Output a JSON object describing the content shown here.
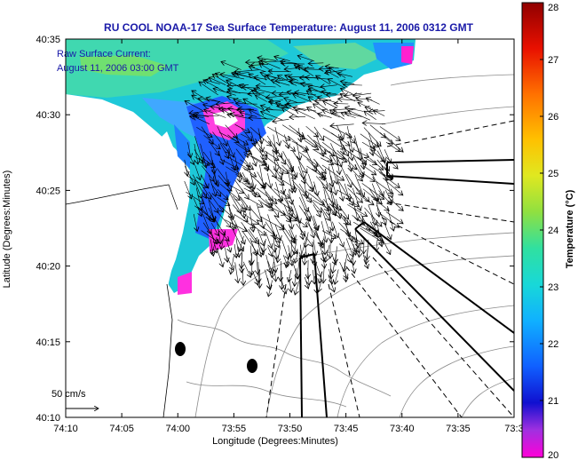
{
  "chart_data": {
    "type": "scatter",
    "title": "RU COOL  NOAA-17  Sea Surface Temperature:  August 11, 2006 0312 GMT",
    "xlabel": "Longitude (Degrees:Minutes)",
    "ylabel": "Latitude (Degrees:Minutes)",
    "x_ticks": [
      "74:10",
      "74:05",
      "74:00",
      "73:55",
      "73:50",
      "73:45",
      "73:40",
      "73:35",
      "73:3"
    ],
    "y_ticks": [
      "40:10",
      "40:15",
      "40:20",
      "40:25",
      "40:30",
      "40:35"
    ],
    "annotation_current_label": "Raw Surface Current:",
    "annotation_current_time": "August 11, 2006 03:00 GMT",
    "scale_label": "50 cm/s",
    "colorbar": {
      "label": "Temperature (°C)",
      "ticks": [
        "20",
        "21",
        "22",
        "23",
        "24",
        "25",
        "26",
        "27",
        "28"
      ],
      "range": [
        20,
        28
      ]
    },
    "colors": {
      "title": "#1a1aa8",
      "land": "#ffffff",
      "contour": "#8c8c8c"
    }
  }
}
